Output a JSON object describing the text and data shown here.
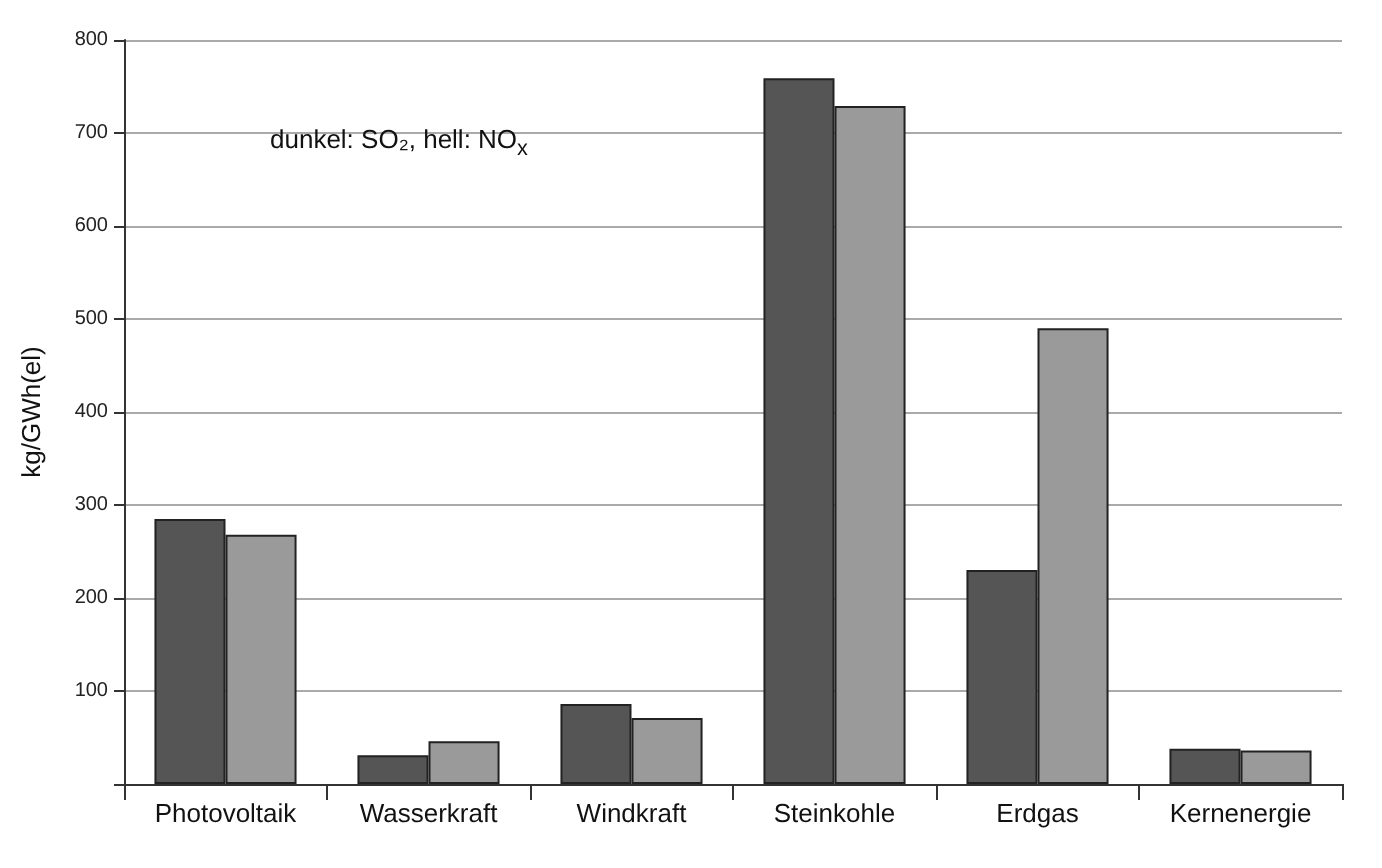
{
  "chart_data": {
    "type": "bar",
    "ylabel": "kg/GWh(el)",
    "categories": [
      "Photovoltaik",
      "Wasserkraft",
      "Windkraft",
      "Steinkohle",
      "Erdgas",
      "Kernenergie"
    ],
    "series": [
      {
        "color": "#555555",
        "values": [
          285,
          31,
          86,
          759,
          230,
          38
        ]
      },
      {
        "color": "#9a9a9a",
        "values": [
          268,
          46,
          71,
          729,
          490,
          36
        ]
      }
    ],
    "ylim": [
      0,
      800
    ],
    "yticks": [
      {
        "value": 0,
        "label": null
      },
      100,
      200,
      300,
      400,
      500,
      600,
      700,
      800
    ],
    "grid": "y",
    "annotations": [
      "dunkel: SO₂, hell: NO$_{x}$"
    ]
  }
}
